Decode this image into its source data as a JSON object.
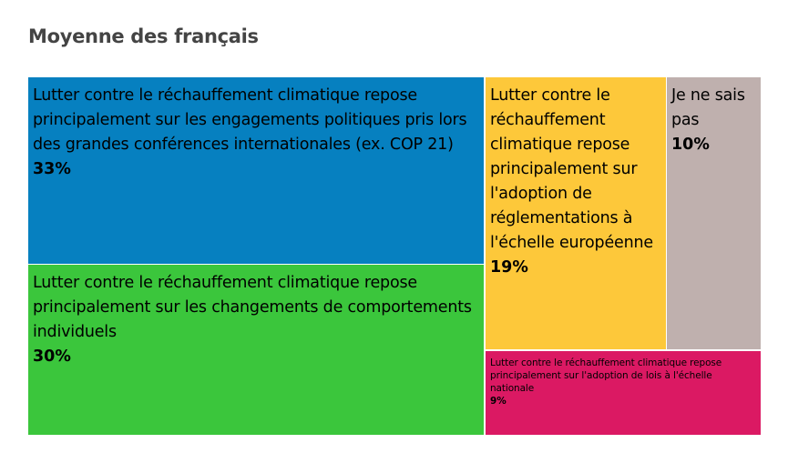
{
  "chart_data": {
    "type": "treemap",
    "title": "Moyenne des français",
    "unit": "%",
    "items": [
      {
        "label": "Lutter contre le réchauffement climatique repose principalement sur les engagements politiques pris lors des grandes conférences internationales (ex. COP 21)",
        "value": 33,
        "value_label": "33%",
        "color": "#0680c0"
      },
      {
        "label": "Lutter contre le réchauffement climatique repose principalement sur les changements de comportements individuels",
        "value": 30,
        "value_label": "30%",
        "color": "#3bc63c"
      },
      {
        "label": "Lutter contre le réchauffement climatique repose principalement sur l'adoption de réglementations à l'échelle européenne",
        "value": 19,
        "value_label": "19%",
        "color": "#fdc83a"
      },
      {
        "label": "Je ne sais pas",
        "value": 10,
        "value_label": "10%",
        "color": "#bfb0ae"
      },
      {
        "label": "Lutter contre le réchauffement climatique repose principalement sur l'adoption de lois à l'échelle nationale",
        "value": 9,
        "value_label": "9%",
        "color": "#db1963"
      }
    ]
  }
}
